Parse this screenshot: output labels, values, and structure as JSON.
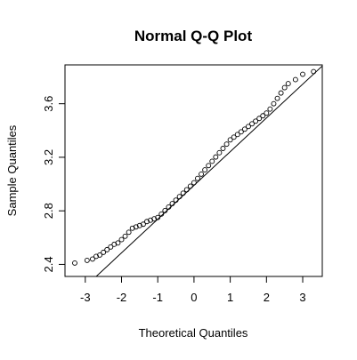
{
  "chart_data": {
    "type": "scatter",
    "title": "Normal Q-Q Plot",
    "x_label": "Theoretical Quantiles",
    "y_label": "Sample Quantiles",
    "x": [
      -3.29,
      -2.95,
      -2.8,
      -2.7,
      -2.6,
      -2.5,
      -2.4,
      -2.3,
      -2.2,
      -2.1,
      -2.0,
      -1.9,
      -1.8,
      -1.7,
      -1.6,
      -1.5,
      -1.4,
      -1.3,
      -1.2,
      -1.1,
      -1.0,
      -0.9,
      -0.8,
      -0.7,
      -0.6,
      -0.5,
      -0.4,
      -0.3,
      -0.2,
      -0.1,
      0,
      0.1,
      0.2,
      0.3,
      0.4,
      0.5,
      0.6,
      0.7,
      0.8,
      0.9,
      1.0,
      1.1,
      1.2,
      1.3,
      1.4,
      1.5,
      1.6,
      1.7,
      1.8,
      1.9,
      2.0,
      2.1,
      2.2,
      2.3,
      2.4,
      2.5,
      2.6,
      2.8,
      3.0,
      3.3
    ],
    "y": [
      2.41,
      2.43,
      2.44,
      2.46,
      2.47,
      2.49,
      2.51,
      2.53,
      2.55,
      2.56,
      2.585,
      2.61,
      2.64,
      2.67,
      2.68,
      2.69,
      2.7,
      2.72,
      2.73,
      2.74,
      2.75,
      2.776,
      2.802,
      2.828,
      2.854,
      2.88,
      2.906,
      2.932,
      2.958,
      2.984,
      3.01,
      3.042,
      3.074,
      3.106,
      3.138,
      3.17,
      3.202,
      3.234,
      3.266,
      3.298,
      3.33,
      3.35,
      3.37,
      3.39,
      3.41,
      3.43,
      3.45,
      3.47,
      3.49,
      3.51,
      3.53,
      3.56,
      3.6,
      3.64,
      3.68,
      3.72,
      3.75,
      3.78,
      3.82,
      3.84
    ],
    "reference_line": {
      "intercept": 2.99,
      "slope": 0.252
    },
    "xlim": [
      -3.56,
      3.54
    ],
    "ylim": [
      2.31,
      3.89
    ],
    "xticks": [
      -3,
      -2,
      -1,
      0,
      1,
      2,
      3
    ],
    "yticks": [
      2.4,
      2.8,
      3.2,
      3.6
    ]
  }
}
